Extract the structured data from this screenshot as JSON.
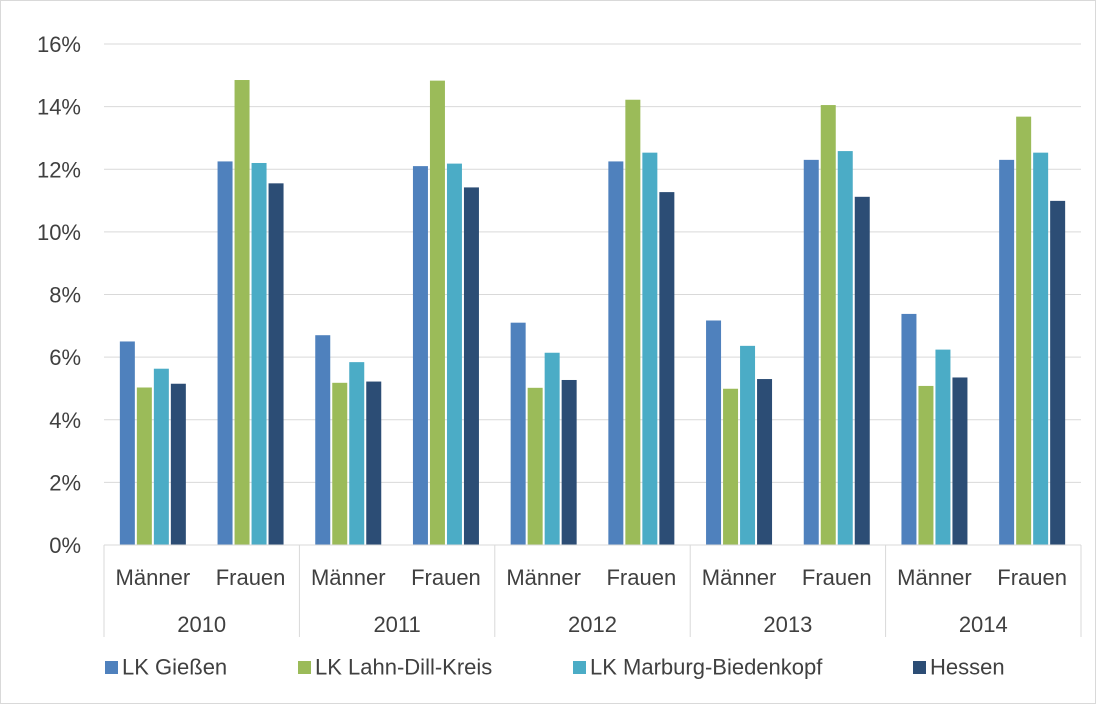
{
  "chart_data": {
    "type": "bar",
    "title": "",
    "xlabel": "",
    "ylabel": "",
    "ylim": [
      0,
      0.16
    ],
    "y_ticks": [
      "0%",
      "2%",
      "4%",
      "6%",
      "8%",
      "10%",
      "12%",
      "14%",
      "16%"
    ],
    "grid": true,
    "legend_position": "bottom",
    "groups": [
      "2010",
      "2011",
      "2012",
      "2013",
      "2014"
    ],
    "categories": [
      "Männer",
      "Frauen",
      "Männer",
      "Frauen",
      "Männer",
      "Frauen",
      "Männer",
      "Frauen",
      "Männer",
      "Frauen"
    ],
    "series": [
      {
        "name": "LK Gießen",
        "color": "#4f81bd",
        "values": [
          0.065,
          0.1225,
          0.067,
          0.121,
          0.071,
          0.1225,
          0.0717,
          0.123,
          0.0738,
          0.123
        ]
      },
      {
        "name": "LK Lahn-Dill-Kreis",
        "color": "#9bbb59",
        "values": [
          0.0503,
          0.1485,
          0.0518,
          0.1483,
          0.0502,
          0.1422,
          0.0499,
          0.1405,
          0.0508,
          0.1368
        ]
      },
      {
        "name": "LK Marburg-Biedenkopf",
        "color": "#4bacc6",
        "values": [
          0.0563,
          0.122,
          0.0584,
          0.1218,
          0.0614,
          0.1253,
          0.0636,
          0.1258,
          0.0624,
          0.1253
        ]
      },
      {
        "name": "Hessen",
        "color": "#2c4d75",
        "values": [
          0.0515,
          0.1155,
          0.0522,
          0.1142,
          0.0527,
          0.1127,
          0.053,
          0.1112,
          0.0535,
          0.1099
        ]
      }
    ]
  }
}
